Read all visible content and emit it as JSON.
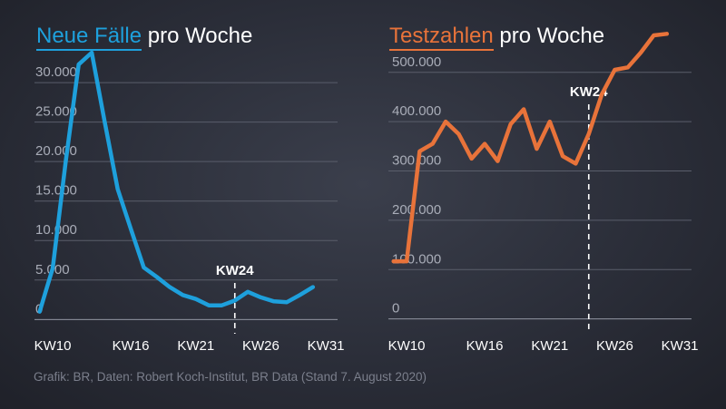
{
  "source_note": "Grafik: BR, Daten: Robert Koch-Institut, BR Data (Stand 7. August 2020)",
  "colors": {
    "blue": "#1ea0dc",
    "orange": "#e8733a",
    "grid": "#5a5e6b",
    "tick": "#a9adb8"
  },
  "chart_data": [
    {
      "type": "line",
      "title_highlight": "Neue Fälle",
      "title_rest": " pro Woche",
      "color": "#1ea0dc",
      "marker_label": "KW24",
      "marker_x": 24,
      "x": [
        9,
        10,
        11,
        12,
        13,
        14,
        15,
        16,
        17,
        18,
        19,
        20,
        21,
        22,
        23,
        24,
        25,
        26,
        27,
        28,
        29,
        30
      ],
      "values": [
        1000,
        6500,
        20000,
        32300,
        33800,
        25000,
        16500,
        11500,
        6600,
        5400,
        4100,
        3100,
        2600,
        1800,
        1800,
        2400,
        3500,
        2800,
        2300,
        2200,
        3100,
        4100
      ],
      "xticks": [
        10,
        16,
        21,
        26,
        31
      ],
      "xtick_labels": [
        "KW10",
        "KW16",
        "KW21",
        "KW26",
        "KW31"
      ],
      "yticks": [
        0,
        5000,
        10000,
        15000,
        20000,
        25000,
        30000
      ],
      "ytick_labels": [
        "0",
        "5.000",
        "10.000",
        "15.000",
        "20.000",
        "25.000",
        "30.000"
      ],
      "xlim": [
        8.6,
        31.9
      ],
      "ylim": [
        -1800,
        33800
      ]
    },
    {
      "type": "line",
      "title_highlight": "Testzahlen",
      "title_rest": " pro Woche",
      "color": "#e8733a",
      "marker_label": "KW24",
      "marker_x": 24,
      "x": [
        9,
        10,
        11,
        12,
        13,
        14,
        15,
        16,
        17,
        18,
        19,
        20,
        21,
        22,
        23,
        24,
        25,
        26,
        27,
        28,
        29,
        30
      ],
      "values": [
        117000,
        117000,
        340000,
        355000,
        400000,
        375000,
        325000,
        355000,
        320000,
        395000,
        425000,
        345000,
        400000,
        330000,
        315000,
        375000,
        455000,
        505000,
        510000,
        540000,
        575000,
        578000
      ],
      "xticks": [
        10,
        16,
        21,
        26,
        31
      ],
      "xtick_labels": [
        "KW10",
        "KW16",
        "KW21",
        "KW26",
        "KW31"
      ],
      "yticks": [
        0,
        100000,
        200000,
        300000,
        400000,
        500000
      ],
      "ytick_labels": [
        "0",
        "100.000",
        "200.000",
        "300.000",
        "400.000",
        "500.000"
      ],
      "xlim": [
        8.6,
        31.9
      ],
      "ylim": [
        -30000,
        540000
      ]
    }
  ]
}
